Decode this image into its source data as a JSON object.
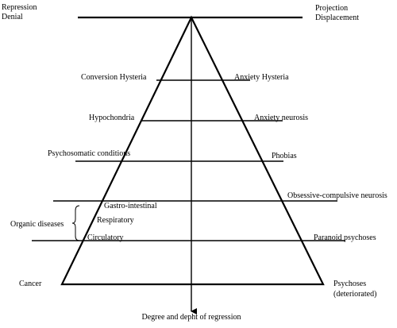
{
  "top": {
    "left": [
      "Repression",
      "Denial"
    ],
    "right": [
      "Projection",
      "Displacement"
    ]
  },
  "levels": [
    {
      "left": "Conversion Hysteria",
      "right": "Anxiety Hysteria"
    },
    {
      "left": "Hypochondria",
      "right": "Anxiety neurosis"
    },
    {
      "left": "Psychosomatic conditions",
      "right": "Phobias"
    },
    {
      "left": "Gastro-intestinal",
      "right": "Obsessive-compulsive neurosis"
    },
    {
      "left": "Circulatory",
      "right": "Paranoid psychoses"
    }
  ],
  "organic": {
    "label": "Organic diseases",
    "middle": "Respiratory"
  },
  "bottom": {
    "left": "Cancer",
    "right": [
      "Psychoses",
      "(deteriorated)"
    ]
  },
  "axis_label": "Degree and depht of regression"
}
